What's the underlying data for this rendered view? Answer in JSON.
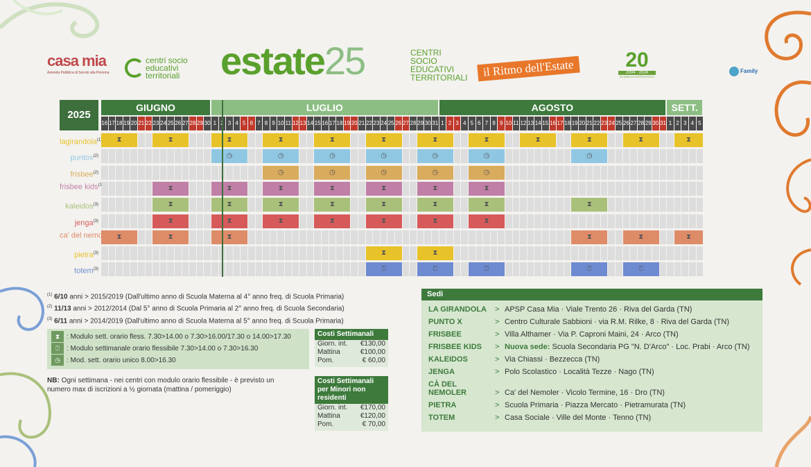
{
  "header": {
    "casa_title": "casa mia",
    "casa_subtitle": "Azienda Pubblica di Servizi alla Persona",
    "centri_logo": "centri socio educativi territoriali",
    "title_word": "estate",
    "title_number": "25",
    "subtitle_lines": [
      "CENTRI",
      "SOCIO",
      "EDUCATIVI",
      "TERRITORIALI"
    ],
    "ritmo": "il Ritmo dell'Estate",
    "anniv_number": "20",
    "anniv_years": "2004 · 2024",
    "anniv_caption": "20 ANNI DI CENTRI ESTIVI",
    "family_logo": "Family"
  },
  "calendar": {
    "year": "2025",
    "months": [
      {
        "label": "GIUGNO",
        "start": 0,
        "span": 15,
        "color": "#3d7a3c"
      },
      {
        "label": "LUGLIO",
        "start": 15,
        "span": 31,
        "color": "#8cbe84"
      },
      {
        "label": "AGOSTO",
        "start": 46,
        "span": 31,
        "color": "#3d7a3c"
      },
      {
        "label": "SETT.",
        "start": 77,
        "span": 5,
        "color": "#8cbe84"
      }
    ],
    "days": [
      "16",
      "17",
      "18",
      "19",
      "20",
      "21",
      "22",
      "23",
      "24",
      "25",
      "26",
      "27",
      "28",
      "29",
      "30",
      "1",
      "2",
      "3",
      "4",
      "5",
      "6",
      "7",
      "8",
      "9",
      "10",
      "11",
      "12",
      "13",
      "14",
      "15",
      "16",
      "17",
      "18",
      "19",
      "20",
      "21",
      "22",
      "23",
      "24",
      "25",
      "26",
      "27",
      "28",
      "29",
      "30",
      "31",
      "1",
      "2",
      "3",
      "4",
      "5",
      "6",
      "7",
      "8",
      "9",
      "10",
      "11",
      "12",
      "13",
      "14",
      "15",
      "16",
      "17",
      "18",
      "19",
      "20",
      "21",
      "22",
      "23",
      "24",
      "25",
      "26",
      "27",
      "28",
      "29",
      "30",
      "31",
      "1",
      "2",
      "3",
      "4",
      "5"
    ],
    "weekend_indices": [
      5,
      6,
      12,
      13,
      19,
      20,
      26,
      27,
      33,
      34,
      40,
      41,
      47,
      48,
      54,
      55,
      61,
      62,
      68,
      69,
      75,
      76
    ],
    "rows": [
      {
        "label": "lagirandola",
        "note": "(1)",
        "color": "#e8c229",
        "icon": "⧗",
        "blocks": [
          [
            0,
            5
          ],
          [
            7,
            5
          ],
          [
            15,
            5
          ],
          [
            22,
            5
          ],
          [
            29,
            5
          ],
          [
            36,
            5
          ],
          [
            43,
            5
          ],
          [
            50,
            5
          ],
          [
            57,
            5
          ],
          [
            64,
            5
          ],
          [
            71,
            5
          ],
          [
            78,
            4
          ]
        ]
      },
      {
        "label": "puntox",
        "note": "(2)",
        "color": "#8fc7e3",
        "icon": "◷",
        "blocks": [
          [
            15,
            5
          ],
          [
            22,
            5
          ],
          [
            29,
            5
          ],
          [
            36,
            5
          ],
          [
            43,
            5
          ],
          [
            50,
            5
          ],
          [
            64,
            5
          ]
        ]
      },
      {
        "label": "frisbee",
        "note": "(2)",
        "color": "#d9ab5c",
        "icon": "◷",
        "blocks": [
          [
            22,
            5
          ],
          [
            29,
            5
          ],
          [
            36,
            5
          ],
          [
            43,
            5
          ],
          [
            50,
            5
          ]
        ]
      },
      {
        "label": "frisbee kids",
        "note": "(1)",
        "color": "#c07fa6",
        "icon": "⧗",
        "blocks": [
          [
            7,
            5
          ],
          [
            15,
            5
          ],
          [
            22,
            5
          ],
          [
            29,
            5
          ],
          [
            36,
            5
          ],
          [
            43,
            5
          ],
          [
            50,
            5
          ]
        ]
      },
      {
        "label": "kaleidos",
        "note": "(3)",
        "color": "#a9c07a",
        "icon": "⧗",
        "blocks": [
          [
            7,
            5
          ],
          [
            15,
            5
          ],
          [
            22,
            5
          ],
          [
            29,
            5
          ],
          [
            36,
            5
          ],
          [
            43,
            5
          ],
          [
            50,
            5
          ],
          [
            64,
            5
          ]
        ]
      },
      {
        "label": "jenga",
        "note": "(3)",
        "color": "#d65a5a",
        "icon": "⧗",
        "blocks": [
          [
            7,
            5
          ],
          [
            15,
            5
          ],
          [
            22,
            5
          ],
          [
            29,
            5
          ],
          [
            36,
            5
          ],
          [
            43,
            5
          ],
          [
            50,
            5
          ]
        ]
      },
      {
        "label": "ca' del nemoler",
        "note": "(3)",
        "color": "#de8b68",
        "icon": "⧗",
        "blocks": [
          [
            0,
            5
          ],
          [
            7,
            5
          ],
          [
            15,
            5
          ],
          [
            64,
            5
          ],
          [
            71,
            5
          ],
          [
            78,
            4
          ]
        ]
      },
      {
        "label": "pietra",
        "note": "(3)",
        "color": "#e8c229",
        "icon": "⧗",
        "blocks": [
          [
            36,
            5
          ],
          [
            43,
            5
          ]
        ]
      },
      {
        "label": "totem",
        "note": "(3)",
        "color": "#6e8ad0",
        "icon": "⍞",
        "blocks": [
          [
            36,
            5
          ],
          [
            43,
            5
          ],
          [
            50,
            5
          ],
          [
            64,
            5
          ],
          [
            71,
            5
          ]
        ]
      }
    ]
  },
  "ages": [
    {
      "note": "(1)",
      "age": "6/10",
      "unit": "anni",
      "years": "2015/2019",
      "desc": "(Dall'ultimo anno di Scuola Materna al 4° anno freq. di Scuola Primaria)"
    },
    {
      "note": "(2)",
      "age": "11/13",
      "unit": "anni",
      "years": "2012/2014",
      "desc": "(Dal 5° anno di Scuola Primaria al 2° anno freq. di Scuola Secondaria)"
    },
    {
      "note": "(3)",
      "age": "6/11",
      "unit": "anni",
      "years": "2014/2019",
      "desc": "(Dall'ultimo anno di Scuola Materna al 5° anno freq. di Scuola Primaria)"
    }
  ],
  "legend": [
    {
      "icon": "⧗",
      "text": ": Modulo sett. orario fless. 7.30>14.00 o 7.30>16.00/17.30 o 14.00>17.30"
    },
    {
      "icon": "⍞",
      "text": ": Modulo settimanale orario flessibile 7.30>14.00 o 7.30>16.30"
    },
    {
      "icon": "◷",
      "text": ": Mod. sett. orario unico 8.00>16.30"
    }
  ],
  "nb": {
    "label": "NB:",
    "text": "Ogni settimana - nei centri con modulo orario flessibile - è previsto un numero max di iscrizioni a ½ giornata (mattina / pomeriggio)"
  },
  "costs": [
    {
      "title": "Costi Settimanali",
      "rows": [
        [
          "Giorn. int.",
          "€130,00"
        ],
        [
          "Mattina",
          "€100,00"
        ],
        [
          "Pom.",
          "€  60,00"
        ]
      ]
    },
    {
      "title": "Costi Settimanali per Minori non residenti",
      "rows": [
        [
          "Giorn. int.",
          "€170,00"
        ],
        [
          "Mattina",
          "€120,00"
        ],
        [
          "Pom.",
          "€  70,00"
        ]
      ]
    }
  ],
  "sedi": {
    "title": "Sedi",
    "items": [
      {
        "name": "LA GIRANDOLA",
        "arrow": ">",
        "highlight": "",
        "address": "APSP Casa Mia · Viale Trento 26 · Riva del Garda (TN)"
      },
      {
        "name": "PUNTO X",
        "arrow": ">",
        "highlight": "",
        "address": "Centro Culturale Sabbioni · via R.M. Rilke, 8 · Riva del Garda (TN)"
      },
      {
        "name": "FRISBEE",
        "arrow": ">",
        "highlight": "",
        "address": "Villa Althamer · Via P. Caproni Maini, 24 · Arco (TN)"
      },
      {
        "name": "FRISBEE KIDS",
        "arrow": ">",
        "highlight": "Nuova sede:",
        "address": " Scuola Secondaria PG \"N. D'Arco\" · Loc. Prabi · Arco (TN)"
      },
      {
        "name": "KALEIDOS",
        "arrow": ">",
        "highlight": "",
        "address": "Via Chiassi · Bezzecca (TN)"
      },
      {
        "name": "JENGA",
        "arrow": ">",
        "highlight": "",
        "address": "Polo Scolastico · Località Tezze · Nago (TN)"
      },
      {
        "name": "CÀ DEL NEMOLER",
        "arrow": ">",
        "highlight": "",
        "address": "Ca' del Nemoler · Vicolo Termine, 16 · Dro (TN)"
      },
      {
        "name": "PIETRA",
        "arrow": ">",
        "highlight": "",
        "address": "Scuola Primaria · Piazza Mercato · Pietramurata (TN)"
      },
      {
        "name": "TOTEM",
        "arrow": ">",
        "highlight": "",
        "address": "Casa Sociale · Ville del Monte · Tenno (TN)"
      }
    ]
  }
}
